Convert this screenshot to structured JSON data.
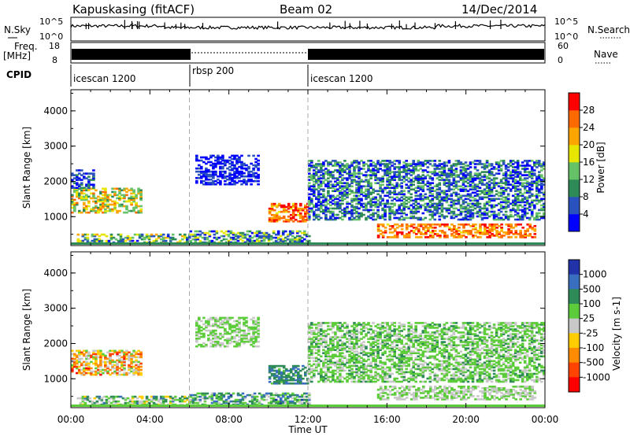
{
  "header": {
    "station": "Kapuskasing (fitACF)",
    "beam": "Beam 02",
    "date": "14/Dec/2014"
  },
  "top_panels": {
    "nsky_label": "N.Sky",
    "nsky_ticks": [
      "10^5",
      "10^0"
    ],
    "nsearch_label": "N.Search",
    "freq_label_line1": "Freq.",
    "freq_label_line2": "[MHz]",
    "freq_ticks": [
      "18",
      "8"
    ],
    "nave_label": "Nave",
    "nave_ticks": [
      "60",
      "0"
    ],
    "cpid_label": "CPID",
    "cpid_segments": [
      {
        "name": "icescan 1200",
        "start_hour": 0,
        "end_hour": 6
      },
      {
        "name": "rbsp 200",
        "start_hour": 6,
        "end_hour": 12
      },
      {
        "name": "icescan 1200",
        "start_hour": 12,
        "end_hour": 24
      }
    ]
  },
  "chart_data": [
    {
      "type": "heatmap",
      "panel": "power",
      "xlabel": "",
      "ylabel": "Slant Range [km]",
      "xlim": [
        0,
        24
      ],
      "ylim": [
        180,
        4600
      ],
      "yticks": [
        "1000",
        "2000",
        "3000",
        "4000"
      ],
      "colorbar_label": "Power [dB]",
      "colorbar_ticks": [
        "4",
        "8",
        "12",
        "16",
        "20",
        "24",
        "28"
      ],
      "colorbar_colors": [
        "#0000ff",
        "#2a52be",
        "#2e8b57",
        "#66c266",
        "#e6e600",
        "#ffa500",
        "#ff6a00",
        "#ff0000"
      ],
      "echo_regions": [
        {
          "t0": 0.3,
          "t1": 6.0,
          "r0": 250,
          "r1": 480,
          "band": [
            0.1,
            0.7
          ]
        },
        {
          "t0": 0.0,
          "t1": 3.5,
          "r0": 1100,
          "r1": 1800,
          "band": [
            0.3,
            0.8
          ]
        },
        {
          "t0": 0.0,
          "t1": 1.2,
          "r0": 1800,
          "r1": 2300,
          "band": [
            0.05,
            0.3
          ]
        },
        {
          "t0": 6.3,
          "t1": 9.5,
          "r0": 1900,
          "r1": 2750,
          "band": [
            0.0,
            0.2
          ]
        },
        {
          "t0": 10.0,
          "t1": 12.0,
          "r0": 850,
          "r1": 1350,
          "band": [
            0.6,
            1.0
          ]
        },
        {
          "t0": 12.0,
          "t1": 24.0,
          "r0": 900,
          "r1": 2600,
          "band": [
            0.0,
            0.5
          ]
        },
        {
          "t0": 15.5,
          "t1": 23.5,
          "r0": 400,
          "r1": 800,
          "band": [
            0.6,
            0.95
          ]
        },
        {
          "t0": 6.0,
          "t1": 12.0,
          "r0": 250,
          "r1": 600,
          "band": [
            0.05,
            0.6
          ]
        }
      ]
    },
    {
      "type": "heatmap",
      "panel": "velocity",
      "xlabel": "Time UT",
      "ylabel": "Slant Range [km]",
      "xlim": [
        0,
        24
      ],
      "ylim": [
        180,
        4600
      ],
      "xticks": [
        "00:00",
        "04:00",
        "08:00",
        "12:00",
        "16:00",
        "20:00",
        "00:00"
      ],
      "yticks": [
        "1000",
        "2000",
        "3000",
        "4000"
      ],
      "colorbar_label": "Velocity [m s-1]",
      "colorbar_ticks": [
        "1000",
        "500",
        "100",
        "25",
        "-25",
        "-100",
        "-500",
        "-1000"
      ],
      "colorbar_colors": [
        "#2233aa",
        "#3a6fc0",
        "#2e8b57",
        "#5ccc3a",
        "#c8c8c8",
        "#ffcc00",
        "#ff8c00",
        "#ff4400",
        "#ff0000"
      ],
      "echo_regions": [
        {
          "t0": 0.3,
          "t1": 6.0,
          "r0": 250,
          "r1": 480,
          "band": [
            0.2,
            0.6
          ]
        },
        {
          "t0": 0.0,
          "t1": 3.5,
          "r0": 1100,
          "r1": 1800,
          "band": [
            0.4,
            0.9
          ]
        },
        {
          "t0": 6.3,
          "t1": 9.5,
          "r0": 1900,
          "r1": 2750,
          "band": [
            0.35,
            0.5
          ]
        },
        {
          "t0": 10.0,
          "t1": 12.0,
          "r0": 850,
          "r1": 1350,
          "band": [
            0.15,
            0.35
          ]
        },
        {
          "t0": 12.0,
          "t1": 24.0,
          "r0": 900,
          "r1": 2600,
          "band": [
            0.3,
            0.5
          ]
        },
        {
          "t0": 15.5,
          "t1": 23.5,
          "r0": 400,
          "r1": 800,
          "band": [
            0.4,
            0.5
          ]
        },
        {
          "t0": 6.0,
          "t1": 12.0,
          "r0": 250,
          "r1": 600,
          "band": [
            0.1,
            0.5
          ]
        }
      ]
    }
  ]
}
